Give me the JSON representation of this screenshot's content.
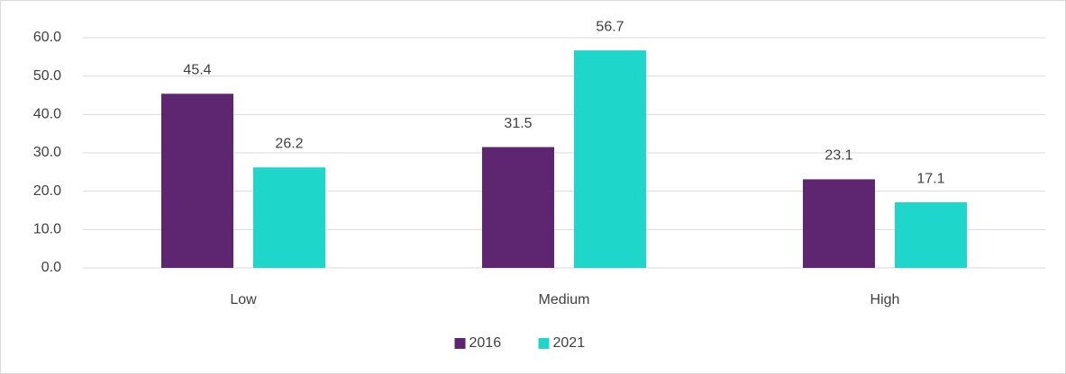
{
  "chart_data": {
    "type": "bar",
    "categories": [
      "Low",
      "Medium",
      "High"
    ],
    "series": [
      {
        "name": "2016",
        "color": "#5e2570",
        "values": [
          45.4,
          31.5,
          23.1
        ]
      },
      {
        "name": "2021",
        "color": "#1fd6cb",
        "values": [
          26.2,
          56.7,
          17.1
        ]
      }
    ],
    "ylim": [
      0,
      60
    ],
    "yticks": [
      {
        "value": 0,
        "label": "0.0"
      },
      {
        "value": 10,
        "label": "10.0"
      },
      {
        "value": 20,
        "label": "20.0"
      },
      {
        "value": 30,
        "label": "30.0"
      },
      {
        "value": 40,
        "label": "40.0"
      },
      {
        "value": 50,
        "label": "50.0"
      },
      {
        "value": 60,
        "label": "60.0"
      }
    ],
    "grid": true,
    "legend": "bottom"
  }
}
